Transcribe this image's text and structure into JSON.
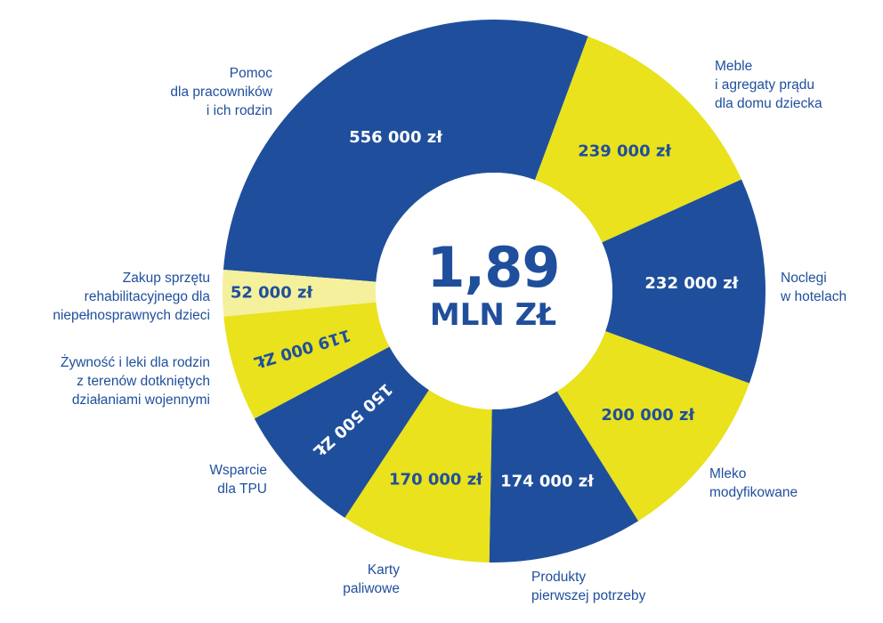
{
  "chart_data": {
    "type": "pie",
    "variant": "donut",
    "center_total": "1,89",
    "center_unit": "MLN ZŁ",
    "start_angle_deg": 274.5,
    "slices": [
      {
        "label_lines": [
          "Pomoc",
          "dla pracowników",
          "i ich rodzin"
        ],
        "value": 556000,
        "value_label": "556 000 zł",
        "color": "#1f4f9c",
        "text_color": "#ffffff"
      },
      {
        "label_lines": [
          "Meble",
          "i agregaty prądu",
          "dla domu dziecka"
        ],
        "value": 239000,
        "value_label": "239 000 zł",
        "color": "#e9e21d",
        "text_color": "#1f4f9c"
      },
      {
        "label_lines": [
          "Noclegi",
          "w hotelach"
        ],
        "value": 232000,
        "value_label": "232 000 zł",
        "color": "#1f4f9c",
        "text_color": "#ffffff"
      },
      {
        "label_lines": [
          "Mleko",
          "modyfikowane"
        ],
        "value": 200000,
        "value_label": "200 000 zł",
        "color": "#e9e21d",
        "text_color": "#1f4f9c"
      },
      {
        "label_lines": [
          "Produkty",
          "pierwszej potrzeby"
        ],
        "value": 174000,
        "value_label": "174 000 zł",
        "color": "#1f4f9c",
        "text_color": "#ffffff"
      },
      {
        "label_lines": [
          "Karty",
          "paliwowe"
        ],
        "value": 170000,
        "value_label": "170 000 zł",
        "color": "#e9e21d",
        "text_color": "#1f4f9c"
      },
      {
        "label_lines": [
          "Wsparcie",
          "dla TPU"
        ],
        "value": 150500,
        "value_label": "150 500 ZŁ",
        "color": "#1f4f9c",
        "text_color": "#ffffff"
      },
      {
        "label_lines": [
          "Żywność i leki dla rodzin",
          "z terenów dotkniętych",
          "działaniami wojennymi"
        ],
        "value": 119000,
        "value_label": "119 000 ZŁ",
        "color": "#e9e21d",
        "text_color": "#1f4f9c"
      },
      {
        "label_lines": [
          "Zakup sprzętu",
          "rehabilitacyjnego dla",
          "niepełnosprawnych dzieci"
        ],
        "value": 52000,
        "value_label": "52 000 zł",
        "color": "#f4f09c",
        "text_color": "#1f4f9c"
      }
    ]
  }
}
